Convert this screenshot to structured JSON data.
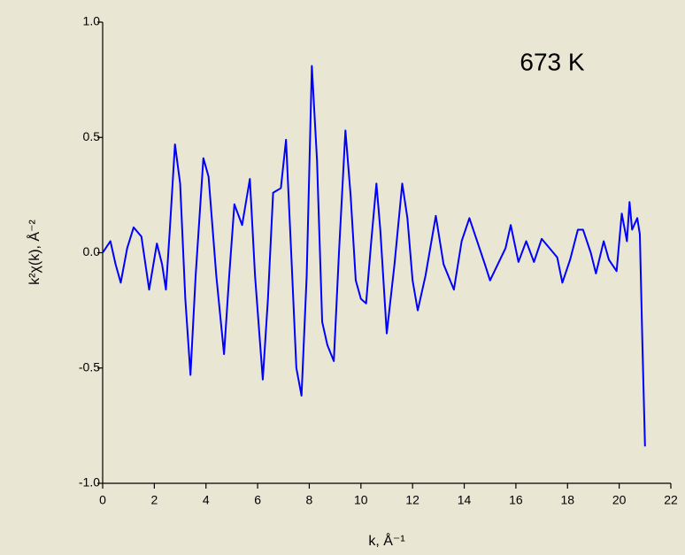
{
  "chart_data": {
    "type": "line",
    "annotation": "673 K",
    "xlabel": "k, Å⁻¹",
    "ylabel": "k²χ(k), Å⁻²",
    "x": [
      0,
      0.3,
      0.5,
      0.7,
      0.95,
      1.2,
      1.5,
      1.8,
      2.1,
      2.3,
      2.45,
      2.6,
      2.8,
      3.0,
      3.2,
      3.4,
      3.6,
      3.9,
      4.1,
      4.4,
      4.7,
      4.9,
      5.1,
      5.4,
      5.7,
      5.9,
      6.2,
      6.4,
      6.6,
      6.9,
      7.1,
      7.3,
      7.5,
      7.7,
      7.9,
      8.1,
      8.3,
      8.5,
      8.7,
      8.95,
      9.15,
      9.4,
      9.6,
      9.8,
      10.0,
      10.2,
      10.4,
      10.6,
      10.75,
      11.0,
      11.3,
      11.6,
      11.8,
      12.0,
      12.2,
      12.5,
      12.9,
      13.2,
      13.6,
      13.9,
      14.2,
      14.5,
      14.8,
      15.0,
      15.3,
      15.6,
      15.8,
      16.1,
      16.4,
      16.7,
      17.0,
      17.3,
      17.6,
      17.8,
      18.1,
      18.4,
      18.6,
      18.9,
      19.1,
      19.4,
      19.6,
      19.9,
      20.1,
      20.3,
      20.4,
      20.5,
      20.7,
      20.8,
      20.9,
      21.0
    ],
    "series": [
      {
        "color": "#0000ff",
        "values": [
          0,
          0.05,
          -0.05,
          -0.13,
          0.02,
          0.11,
          0.07,
          -0.16,
          0.04,
          -0.05,
          -0.16,
          0.1,
          0.47,
          0.3,
          -0.2,
          -0.53,
          -0.1,
          0.41,
          0.33,
          -0.1,
          -0.44,
          -0.1,
          0.21,
          0.12,
          0.32,
          -0.1,
          -0.55,
          -0.2,
          0.26,
          0.28,
          0.49,
          0.0,
          -0.5,
          -0.62,
          -0.1,
          0.81,
          0.4,
          -0.3,
          -0.4,
          -0.47,
          0.0,
          0.53,
          0.25,
          -0.12,
          -0.2,
          -0.22,
          0.05,
          0.3,
          0.1,
          -0.35,
          -0.05,
          0.3,
          0.15,
          -0.12,
          -0.25,
          -0.1,
          0.16,
          -0.05,
          -0.16,
          0.05,
          0.15,
          0.05,
          -0.05,
          -0.12,
          -0.05,
          0.02,
          0.12,
          -0.04,
          0.05,
          -0.04,
          0.06,
          0.02,
          -0.02,
          -0.13,
          -0.03,
          0.1,
          0.1,
          0.0,
          -0.09,
          0.05,
          -0.03,
          -0.08,
          0.17,
          0.05,
          0.22,
          0.1,
          0.15,
          0.08,
          -0.4,
          -0.84
        ]
      }
    ],
    "xlim": [
      0,
      22
    ],
    "xticks": [
      0,
      2,
      4,
      6,
      8,
      10,
      12,
      14,
      16,
      18,
      20,
      22
    ],
    "ylim": [
      -1,
      1
    ],
    "yticks": [
      {
        "value": -1,
        "label": "-1.0"
      },
      {
        "value": -0.5,
        "label": "-0.5"
      },
      {
        "value": 0,
        "label": "0.0"
      },
      {
        "value": 0.5,
        "label": "0.5"
      },
      {
        "value": 1,
        "label": "1.0"
      }
    ]
  }
}
